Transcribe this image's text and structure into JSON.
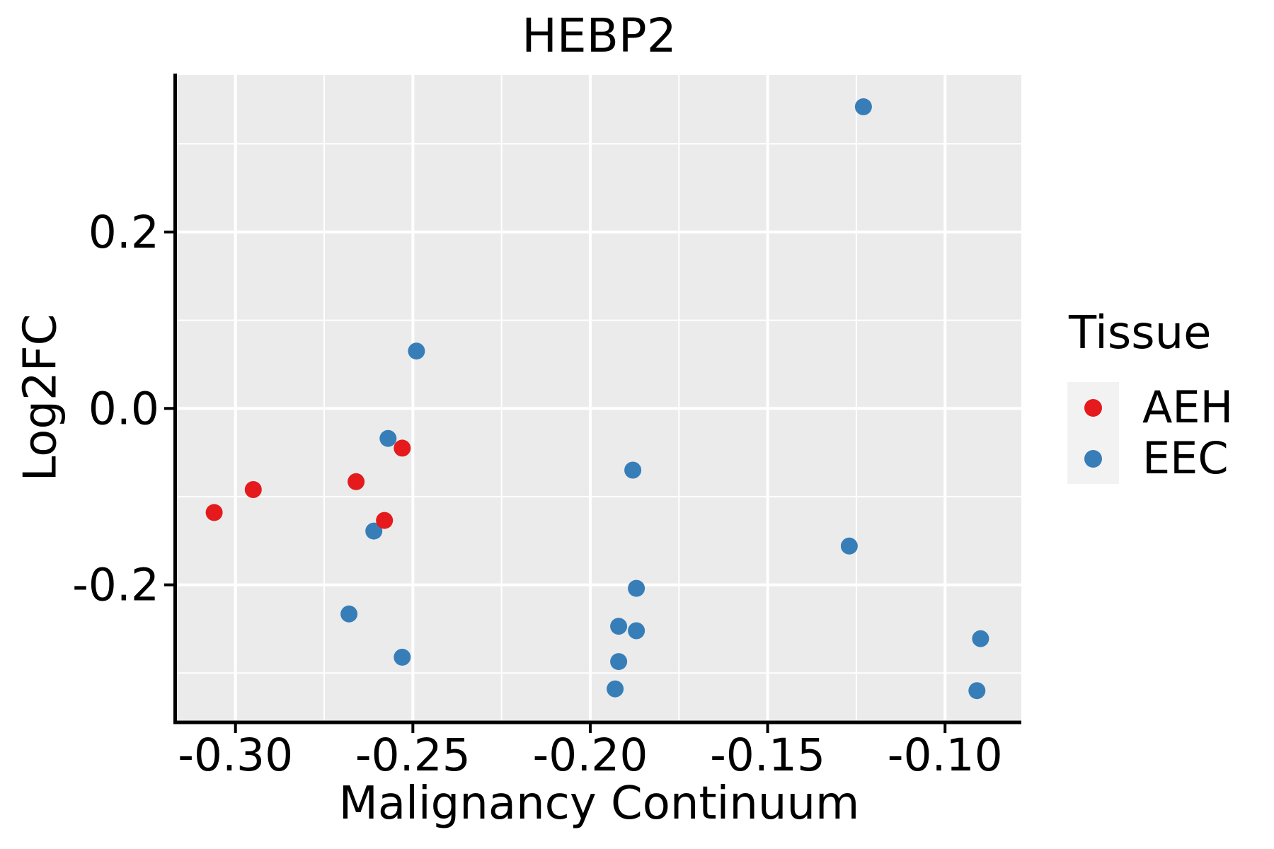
{
  "styles": {
    "panel_bg": "#ebebeb",
    "grid_color": "#ffffff",
    "axis_color": "#000000",
    "text_color": "#000000",
    "legend_key_bg": "#f2f2f2",
    "aeh_color": "#e41a1c",
    "eec_color": "#377eb8"
  },
  "chart_data": {
    "type": "scatter",
    "title": "HEBP2",
    "xlabel": "Malignancy Continuum",
    "ylabel": "Log2FC",
    "xlim": [
      -0.3165,
      -0.0785
    ],
    "ylim": [
      -0.3535,
      0.378
    ],
    "x_ticks": {
      "values": [
        -0.3,
        -0.25,
        -0.2,
        -0.15,
        -0.1
      ],
      "labels": [
        "-0.30",
        "-0.25",
        "-0.20",
        "-0.15",
        "-0.10"
      ]
    },
    "y_ticks": {
      "values": [
        0.2,
        0.0,
        -0.2
      ],
      "labels": [
        "0.2",
        "0.0",
        "-0.2"
      ]
    },
    "x_minor": [
      -0.275,
      -0.225,
      -0.175,
      -0.125
    ],
    "y_minor": [
      0.3,
      0.1,
      -0.1,
      -0.3
    ],
    "grid": true,
    "point_radius_px": 12,
    "legend": {
      "title": "Tissue",
      "position": "right",
      "entries": [
        {
          "label": "AEH",
          "color": "#e41a1c"
        },
        {
          "label": "EEC",
          "color": "#377eb8"
        }
      ]
    },
    "series": [
      {
        "name": "AEH",
        "color": "#e41a1c",
        "points": [
          [
            -0.306,
            -0.118
          ],
          [
            -0.295,
            -0.092
          ],
          [
            -0.266,
            -0.083
          ],
          [
            -0.258,
            -0.127
          ],
          [
            -0.253,
            -0.045
          ]
        ]
      },
      {
        "name": "EEC",
        "color": "#377eb8",
        "points": [
          [
            -0.249,
            0.065
          ],
          [
            -0.257,
            -0.034
          ],
          [
            -0.261,
            -0.139
          ],
          [
            -0.268,
            -0.233
          ],
          [
            -0.253,
            -0.282
          ],
          [
            -0.188,
            -0.07
          ],
          [
            -0.187,
            -0.204
          ],
          [
            -0.192,
            -0.247
          ],
          [
            -0.187,
            -0.252
          ],
          [
            -0.192,
            -0.287
          ],
          [
            -0.193,
            -0.318
          ],
          [
            -0.123,
            0.342
          ],
          [
            -0.127,
            -0.156
          ],
          [
            -0.09,
            -0.261
          ],
          [
            -0.091,
            -0.32
          ]
        ]
      }
    ]
  }
}
